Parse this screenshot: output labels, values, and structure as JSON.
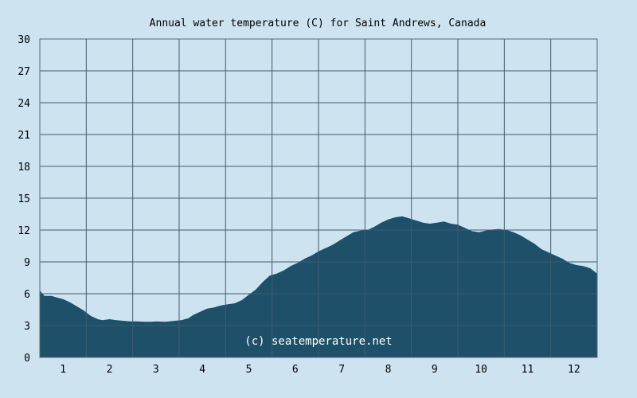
{
  "chart_data": {
    "type": "area",
    "title": "Annual water temperature (C) for Saint Andrews, Canada",
    "xlabel": "",
    "ylabel": "",
    "watermark": "(c) seatemperature.net",
    "xlim": [
      0.5,
      12.5
    ],
    "ylim": [
      0,
      30
    ],
    "yticks": [
      "0",
      "3",
      "6",
      "9",
      "12",
      "15",
      "18",
      "21",
      "24",
      "27",
      "30"
    ],
    "xticks": [
      "1",
      "2",
      "3",
      "4",
      "5",
      "6",
      "7",
      "8",
      "9",
      "10",
      "11",
      "12"
    ],
    "grid": true,
    "colors": {
      "background": "#cde3f0",
      "area": "#1e5069",
      "grid": "#3e5b6e",
      "frame": "#52697a"
    },
    "series": [
      {
        "x": [
          0.5,
          0.6,
          0.75,
          0.9,
          1.0,
          1.15,
          1.3,
          1.45,
          1.6,
          1.75,
          1.85,
          2.0,
          2.15,
          2.3,
          2.45,
          2.6,
          2.75,
          2.9,
          3.0,
          3.2,
          3.4,
          3.55,
          3.7,
          3.8,
          3.95,
          4.1,
          4.25,
          4.4,
          4.55,
          4.7,
          4.85,
          5.0,
          5.15,
          5.3,
          5.45,
          5.6,
          5.75,
          5.9,
          6.05,
          6.2,
          6.35,
          6.5,
          6.65,
          6.8,
          6.95,
          7.1,
          7.25,
          7.4,
          7.55,
          7.7,
          7.85,
          8.0,
          8.15,
          8.3,
          8.45,
          8.6,
          8.75,
          8.9,
          9.05,
          9.2,
          9.35,
          9.5,
          9.65,
          9.8,
          9.95,
          10.1,
          10.25,
          10.4,
          10.55,
          10.7,
          10.85,
          11.0,
          11.15,
          11.3,
          11.45,
          11.6,
          11.75,
          11.9,
          12.05,
          12.2,
          12.35,
          12.5
        ],
        "y": [
          6.3,
          5.8,
          5.8,
          5.6,
          5.5,
          5.2,
          4.8,
          4.4,
          3.9,
          3.6,
          3.5,
          3.6,
          3.5,
          3.45,
          3.4,
          3.4,
          3.35,
          3.35,
          3.4,
          3.35,
          3.45,
          3.5,
          3.7,
          4.0,
          4.3,
          4.6,
          4.7,
          4.9,
          5.0,
          5.1,
          5.4,
          5.9,
          6.4,
          7.1,
          7.7,
          7.9,
          8.2,
          8.6,
          8.9,
          9.3,
          9.6,
          10.0,
          10.3,
          10.6,
          11.0,
          11.4,
          11.8,
          11.95,
          12.0,
          12.3,
          12.7,
          13.0,
          13.2,
          13.3,
          13.1,
          12.9,
          12.7,
          12.6,
          12.7,
          12.8,
          12.6,
          12.5,
          12.2,
          11.9,
          11.8,
          11.95,
          12.05,
          12.1,
          12.0,
          11.8,
          11.5,
          11.1,
          10.7,
          10.2,
          9.9,
          9.6,
          9.3,
          8.9,
          8.7,
          8.6,
          8.4,
          7.9
        ]
      }
    ]
  }
}
